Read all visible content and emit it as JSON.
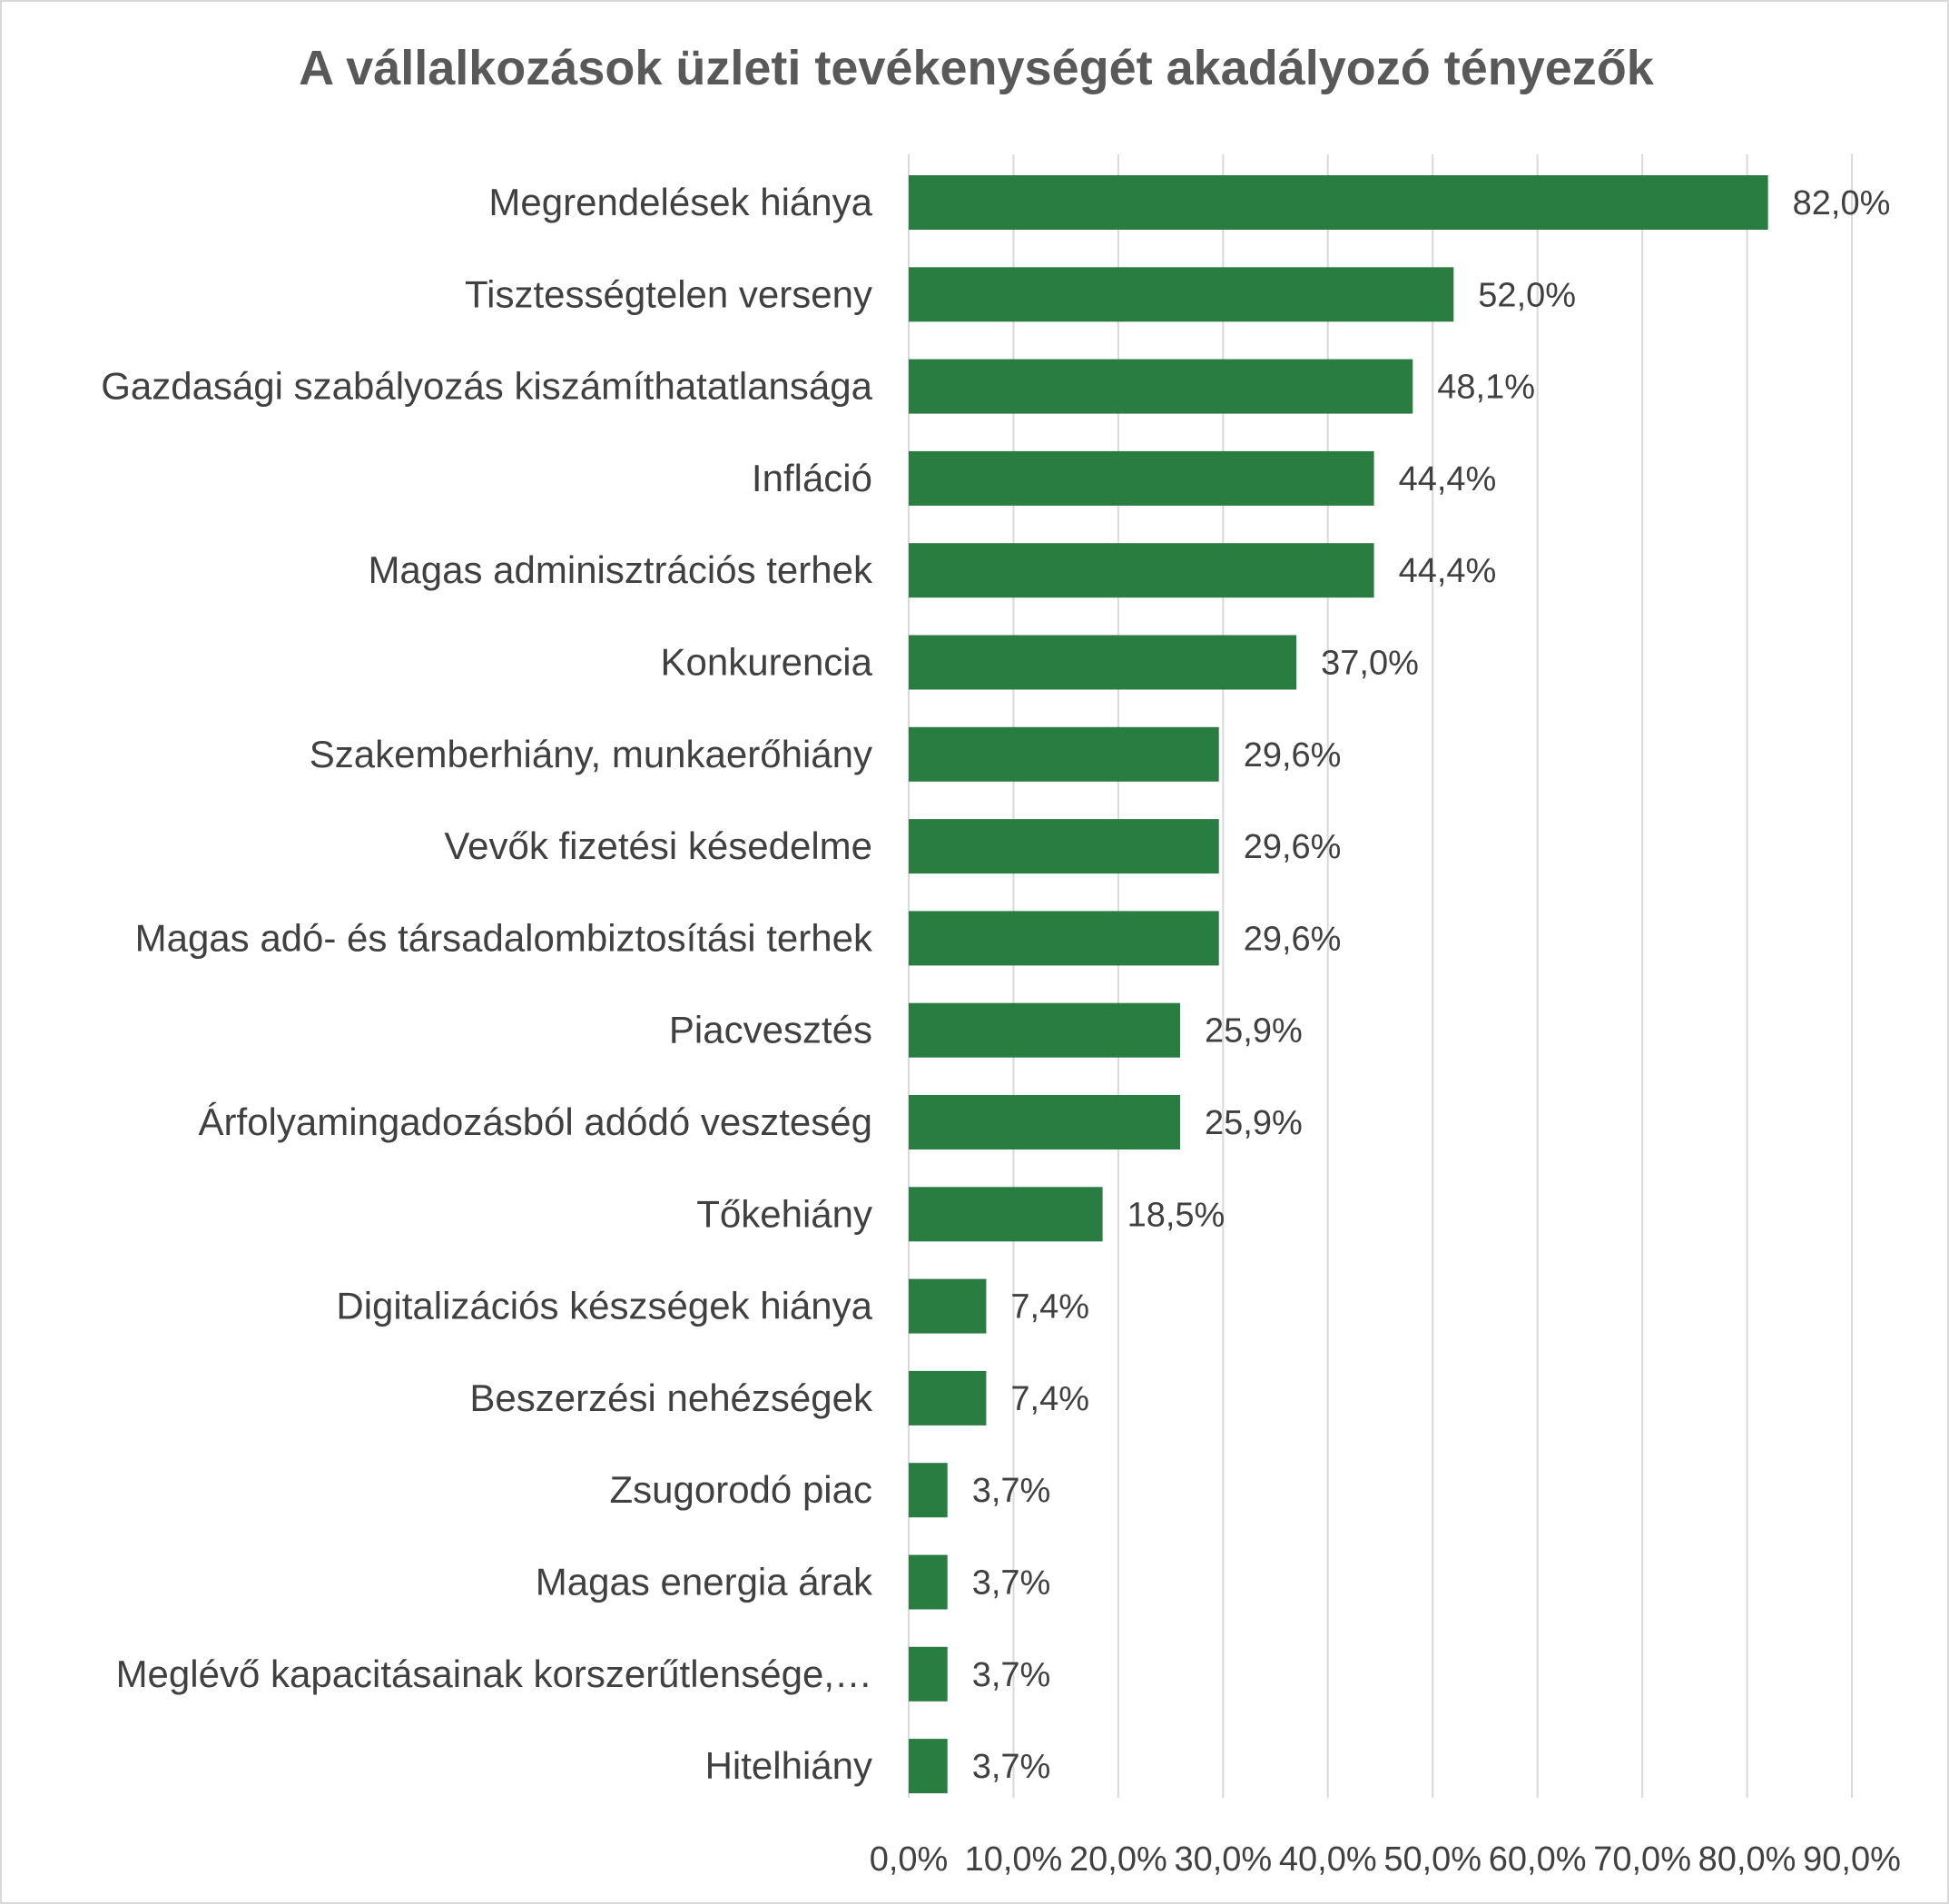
{
  "chart_data": {
    "type": "bar",
    "orientation": "horizontal",
    "title": "A vállalkozások üzleti tevékenységét akadályozó tényezők",
    "categories": [
      "Megrendelések hiánya",
      "Tisztességtelen verseny",
      "Gazdasági szabályozás kiszámíthatatlansága",
      "Infláció",
      "Magas adminisztrációs terhek",
      "Konkurencia",
      "Szakemberhiány, munkaerőhiány",
      "Vevők fizetési késedelme",
      "Magas adó- és társadalombiztosítási terhek",
      "Piacvesztés",
      "Árfolyamingadozásból adódó veszteség",
      "Tőkehiány",
      "Digitalizációs készségek hiánya",
      "Beszerzési nehézségek",
      "Zsugorodó piac",
      "Magas energia árak",
      "Meglévő kapacitásainak korszerűtlensége,…",
      "Hitelhiány"
    ],
    "values": [
      82.0,
      52.0,
      48.1,
      44.4,
      44.4,
      37.0,
      29.6,
      29.6,
      29.6,
      25.9,
      25.9,
      18.5,
      7.4,
      7.4,
      3.7,
      3.7,
      3.7,
      3.7
    ],
    "value_labels": [
      "82,0%",
      "52,0%",
      "48,1%",
      "44,4%",
      "44,4%",
      "37,0%",
      "29,6%",
      "29,6%",
      "29,6%",
      "25,9%",
      "25,9%",
      "18,5%",
      "7,4%",
      "7,4%",
      "3,7%",
      "3,7%",
      "3,7%",
      "3,7%"
    ],
    "xlim": [
      0,
      90
    ],
    "x_ticks": [
      0,
      10,
      20,
      30,
      40,
      50,
      60,
      70,
      80,
      90
    ],
    "x_tick_labels": [
      "0,0%",
      "10,0%",
      "20,0%",
      "30,0%",
      "40,0%",
      "50,0%",
      "60,0%",
      "70,0%",
      "80,0%",
      "90,0%"
    ],
    "grid": "vertical",
    "legend": "none",
    "bar_color": "#2a7d40"
  }
}
